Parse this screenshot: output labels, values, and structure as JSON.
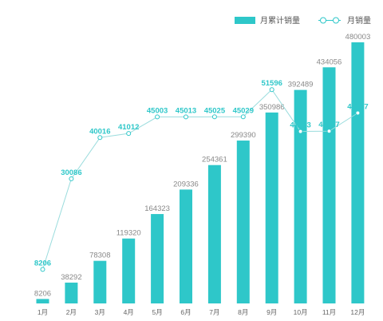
{
  "chart_data": {
    "type": "bar",
    "categories": [
      "1月",
      "2月",
      "3月",
      "4月",
      "5月",
      "6月",
      "7月",
      "8月",
      "9月",
      "10月",
      "11月",
      "12月"
    ],
    "series": [
      {
        "name": "月累计销量",
        "type": "bar",
        "color": "#2ec7c9",
        "values": [
          8206,
          38292,
          78308,
          119320,
          164323,
          209336,
          254361,
          299390,
          350986,
          392489,
          434056,
          480003
        ]
      },
      {
        "name": "月销量",
        "type": "line",
        "color": "#2ec7c9",
        "values": [
          8206,
          30086,
          40016,
          41012,
          45003,
          45013,
          45025,
          45029,
          51596,
          41503,
          41567,
          45947
        ],
        "labels": [
          "8206",
          "30086",
          "40016",
          "41012",
          "45003",
          "45013",
          "45025",
          "45029",
          "51596",
          "41503",
          "41567",
          "45947"
        ]
      }
    ],
    "ylim": [
      0,
      480003
    ],
    "grid": false,
    "legend": "top-right"
  }
}
